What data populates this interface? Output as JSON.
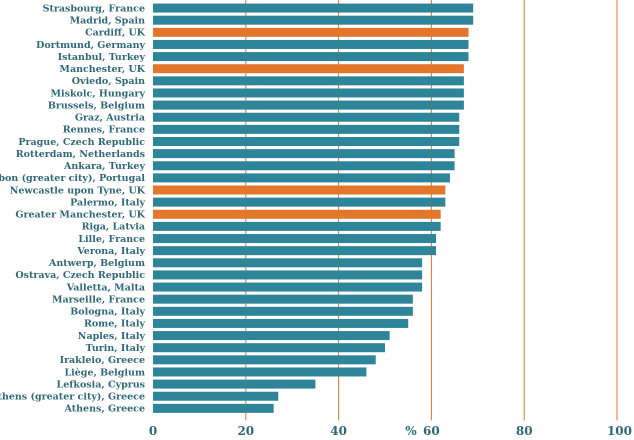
{
  "chart_data": {
    "type": "bar",
    "orientation": "horizontal",
    "categories": [
      "Strasbourg, France",
      "Madrid, Spain",
      "Cardiff, UK",
      "Dortmund, Germany",
      "Istanbul, Turkey",
      "Manchester, UK",
      "Oviedo, Spain",
      "Miskolc, Hungary",
      "Brussels, Belgium",
      "Graz, Austria",
      "Rennes, France",
      "Prague, Czech Republic",
      "Rotterdam, Netherlands",
      "Ankara, Turkey",
      "Lisbon (greater city), Portugal",
      "Newcastle upon Tyne, UK",
      "Palermo, Italy",
      "Greater Manchester, UK",
      "Riga, Latvia",
      "Lille, France",
      "Verona, Italy",
      "Antwerp, Belgium",
      "Ostrava, Czech Republic",
      "Valletta, Malta",
      "Marseille, France",
      "Bologna, Italy",
      "Rome, Italy",
      "Naples, Italy",
      "Turin, Italy",
      "Irakleio, Greece",
      "Liège, Belgium",
      "Lefkosia, Cyprus",
      "Athens (greater city), Greece",
      "Athens, Greece"
    ],
    "values": [
      69,
      69,
      68,
      68,
      68,
      67,
      67,
      67,
      67,
      66,
      66,
      66,
      65,
      65,
      64,
      63,
      63,
      62,
      62,
      61,
      61,
      58,
      58,
      58,
      56,
      56,
      55,
      51,
      50,
      48,
      46,
      35,
      27,
      26
    ],
    "highlighted": [
      2,
      5,
      15,
      17
    ],
    "xlim": [
      0,
      100
    ],
    "xticks": [
      0,
      20,
      40,
      60,
      80,
      100
    ],
    "xlabel": "%",
    "grid": true,
    "colors": {
      "bar": "#2e8498",
      "highlight": "#e2762b",
      "gridline": "#e2762b",
      "text": "#2f6878"
    }
  }
}
